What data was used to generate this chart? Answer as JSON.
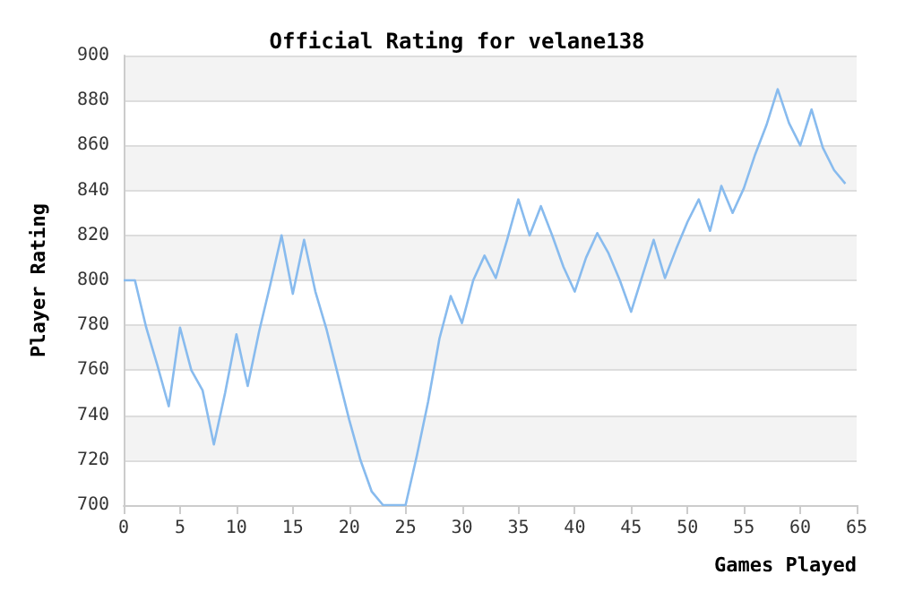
{
  "chart_data": {
    "type": "line",
    "title": "Official Rating for velane138",
    "xlabel": "Games Played",
    "ylabel": "Player Rating",
    "x": [
      0,
      1,
      2,
      3,
      4,
      5,
      6,
      7,
      8,
      9,
      10,
      11,
      12,
      13,
      14,
      15,
      16,
      17,
      18,
      19,
      20,
      21,
      22,
      23,
      24,
      25,
      26,
      27,
      28,
      29,
      30,
      31,
      32,
      33,
      34,
      35,
      36,
      37,
      38,
      39,
      40,
      41,
      42,
      43,
      44,
      45,
      46,
      47,
      48,
      49,
      50,
      51,
      52,
      53,
      54,
      55,
      56,
      57,
      58,
      59,
      60,
      61,
      62,
      63,
      64
    ],
    "series": [
      {
        "color": "#88bbee",
        "values": [
          800,
          800,
          779,
          762,
          744,
          779,
          760,
          751,
          727,
          750,
          776,
          753,
          777,
          798,
          820,
          794,
          818,
          795,
          778,
          758,
          738,
          720,
          706,
          700,
          700,
          700,
          722,
          746,
          774,
          793,
          781,
          800,
          811,
          801,
          818,
          836,
          820,
          833,
          820,
          806,
          795,
          810,
          821,
          812,
          800,
          786,
          802,
          818,
          801,
          814,
          826,
          836,
          822,
          842,
          830,
          841,
          856,
          869,
          885,
          870,
          860,
          876,
          859,
          849,
          843
        ]
      }
    ],
    "xlim": [
      0,
      65
    ],
    "xticks": [
      0,
      5,
      10,
      15,
      20,
      25,
      30,
      35,
      40,
      45,
      50,
      55,
      60,
      65
    ],
    "ylim": [
      700,
      900
    ],
    "yticks": [
      700,
      720,
      740,
      760,
      780,
      800,
      820,
      840,
      860,
      880,
      900
    ],
    "grid": "y",
    "marker": "none",
    "line_style": "solid"
  }
}
